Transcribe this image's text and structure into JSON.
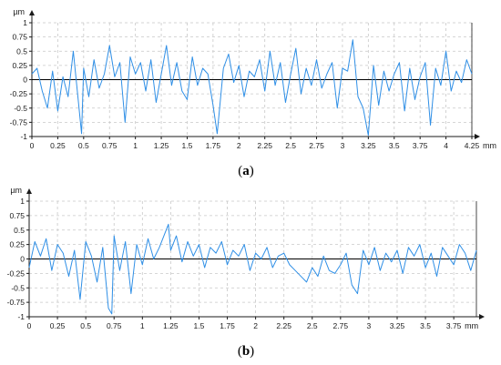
{
  "colors": {
    "series": "#2f8fe6",
    "grid": "#c8c8c8",
    "axis": "#1a1a1a",
    "zero_line": "#000000"
  },
  "chart_data": [
    {
      "type": "line",
      "caption": {
        "open": "(",
        "letter": "a",
        "close": ")"
      },
      "ylabel": "µm",
      "xunit": "mm",
      "xlim": [
        0,
        4.25
      ],
      "ylim": [
        -1,
        1
      ],
      "grid": true,
      "xticks": [
        "0",
        "0.25",
        "0.5",
        "0.75",
        "1",
        "1.25",
        "1.5",
        "1.75",
        "2",
        "2.25",
        "2.5",
        "2.75",
        "3",
        "3.25",
        "3.5",
        "3.75",
        "4",
        "4.25"
      ],
      "yticks": [
        "1",
        "0.75",
        "0.5",
        "0.25",
        "0",
        "-0.25",
        "-0.5",
        "-0.75",
        "-1"
      ],
      "series": [
        {
          "x": [
            0,
            0.05,
            0.1,
            0.15,
            0.2,
            0.25,
            0.3,
            0.35,
            0.4,
            0.45,
            0.48,
            0.5,
            0.55,
            0.6,
            0.65,
            0.7,
            0.75,
            0.8,
            0.85,
            0.9,
            0.95,
            1.0,
            1.05,
            1.1,
            1.15,
            1.2,
            1.25,
            1.3,
            1.35,
            1.4,
            1.45,
            1.5,
            1.55,
            1.6,
            1.65,
            1.7,
            1.75,
            1.79,
            1.85,
            1.9,
            1.95,
            2.0,
            2.05,
            2.1,
            2.15,
            2.2,
            2.25,
            2.3,
            2.35,
            2.4,
            2.45,
            2.5,
            2.55,
            2.6,
            2.65,
            2.7,
            2.75,
            2.8,
            2.85,
            2.9,
            2.95,
            3.0,
            3.05,
            3.1,
            3.15,
            3.2,
            3.25,
            3.3,
            3.35,
            3.4,
            3.45,
            3.5,
            3.55,
            3.6,
            3.65,
            3.7,
            3.75,
            3.8,
            3.85,
            3.9,
            3.95,
            4.0,
            4.05,
            4.1,
            4.15,
            4.2,
            4.25
          ],
          "y": [
            0.1,
            0.2,
            -0.2,
            -0.5,
            0.15,
            -0.55,
            0.05,
            -0.3,
            0.5,
            -0.4,
            -0.95,
            0.2,
            -0.3,
            0.35,
            -0.15,
            0.1,
            0.6,
            0.05,
            0.3,
            -0.75,
            0.4,
            0.1,
            0.3,
            -0.2,
            0.35,
            -0.4,
            0.1,
            0.6,
            -0.1,
            0.3,
            -0.2,
            -0.35,
            0.4,
            -0.1,
            0.2,
            0.1,
            -0.45,
            -0.95,
            0.2,
            0.45,
            -0.05,
            0.25,
            -0.3,
            0.15,
            0.05,
            0.35,
            -0.2,
            0.5,
            -0.1,
            0.3,
            -0.4,
            0.1,
            0.55,
            -0.25,
            0.2,
            -0.1,
            0.35,
            -0.15,
            0.1,
            0.3,
            -0.5,
            0.2,
            0.15,
            0.7,
            -0.3,
            -0.5,
            -0.98,
            0.25,
            -0.45,
            0.15,
            -0.2,
            0.1,
            0.3,
            -0.55,
            0.2,
            -0.35,
            0.05,
            0.3,
            -0.8,
            0.2,
            -0.1,
            0.5,
            -0.2,
            0.15,
            -0.05,
            0.35,
            0.1
          ]
        }
      ]
    },
    {
      "type": "line",
      "caption": {
        "open": "(",
        "letter": "b",
        "close": ")"
      },
      "ylabel": "µm",
      "xunit": "mm",
      "xlim": [
        0,
        3.95
      ],
      "ylim": [
        -1,
        1
      ],
      "grid": true,
      "xticks": [
        "0",
        "0.25",
        "0.5",
        "0.75",
        "1",
        "1.25",
        "1.5",
        "1.75",
        "2",
        "2.25",
        "2.5",
        "2.75",
        "3",
        "3.25",
        "3.5",
        "3.75"
      ],
      "yticks": [
        "1",
        "0.75",
        "0.5",
        "0.25",
        "0",
        "-0.25",
        "-0.5",
        "-0.75",
        "-1"
      ],
      "series": [
        {
          "x": [
            0,
            0.05,
            0.1,
            0.15,
            0.2,
            0.25,
            0.3,
            0.35,
            0.4,
            0.45,
            0.5,
            0.55,
            0.6,
            0.65,
            0.7,
            0.73,
            0.75,
            0.8,
            0.85,
            0.9,
            0.95,
            1.0,
            1.05,
            1.1,
            1.15,
            1.2,
            1.23,
            1.25,
            1.3,
            1.35,
            1.4,
            1.45,
            1.5,
            1.55,
            1.6,
            1.65,
            1.7,
            1.75,
            1.8,
            1.85,
            1.9,
            1.95,
            2.0,
            2.05,
            2.1,
            2.15,
            2.2,
            2.25,
            2.3,
            2.35,
            2.4,
            2.45,
            2.5,
            2.55,
            2.6,
            2.65,
            2.7,
            2.75,
            2.8,
            2.85,
            2.9,
            2.95,
            3.0,
            3.05,
            3.1,
            3.15,
            3.2,
            3.25,
            3.3,
            3.35,
            3.4,
            3.45,
            3.5,
            3.55,
            3.6,
            3.65,
            3.7,
            3.75,
            3.8,
            3.85,
            3.9,
            3.95
          ],
          "y": [
            -0.15,
            0.3,
            0.05,
            0.35,
            -0.2,
            0.25,
            0.1,
            -0.3,
            0.15,
            -0.7,
            0.3,
            0.05,
            -0.4,
            0.2,
            -0.85,
            -0.95,
            0.4,
            -0.2,
            0.3,
            -0.6,
            0.25,
            -0.1,
            0.35,
            0.0,
            0.2,
            0.45,
            0.6,
            0.15,
            0.4,
            -0.05,
            0.3,
            0.05,
            0.25,
            -0.15,
            0.2,
            0.1,
            0.3,
            -0.1,
            0.15,
            0.05,
            0.25,
            -0.2,
            0.1,
            0.0,
            0.2,
            -0.15,
            0.05,
            0.1,
            -0.1,
            -0.2,
            -0.3,
            -0.4,
            -0.15,
            -0.3,
            0.05,
            -0.2,
            -0.25,
            -0.1,
            0.1,
            -0.45,
            -0.6,
            0.15,
            -0.1,
            0.2,
            -0.2,
            0.1,
            -0.05,
            0.15,
            -0.25,
            0.2,
            0.05,
            0.25,
            -0.15,
            0.1,
            -0.3,
            0.2,
            0.05,
            -0.1,
            0.25,
            0.1,
            -0.2,
            0.15
          ]
        }
      ]
    }
  ]
}
